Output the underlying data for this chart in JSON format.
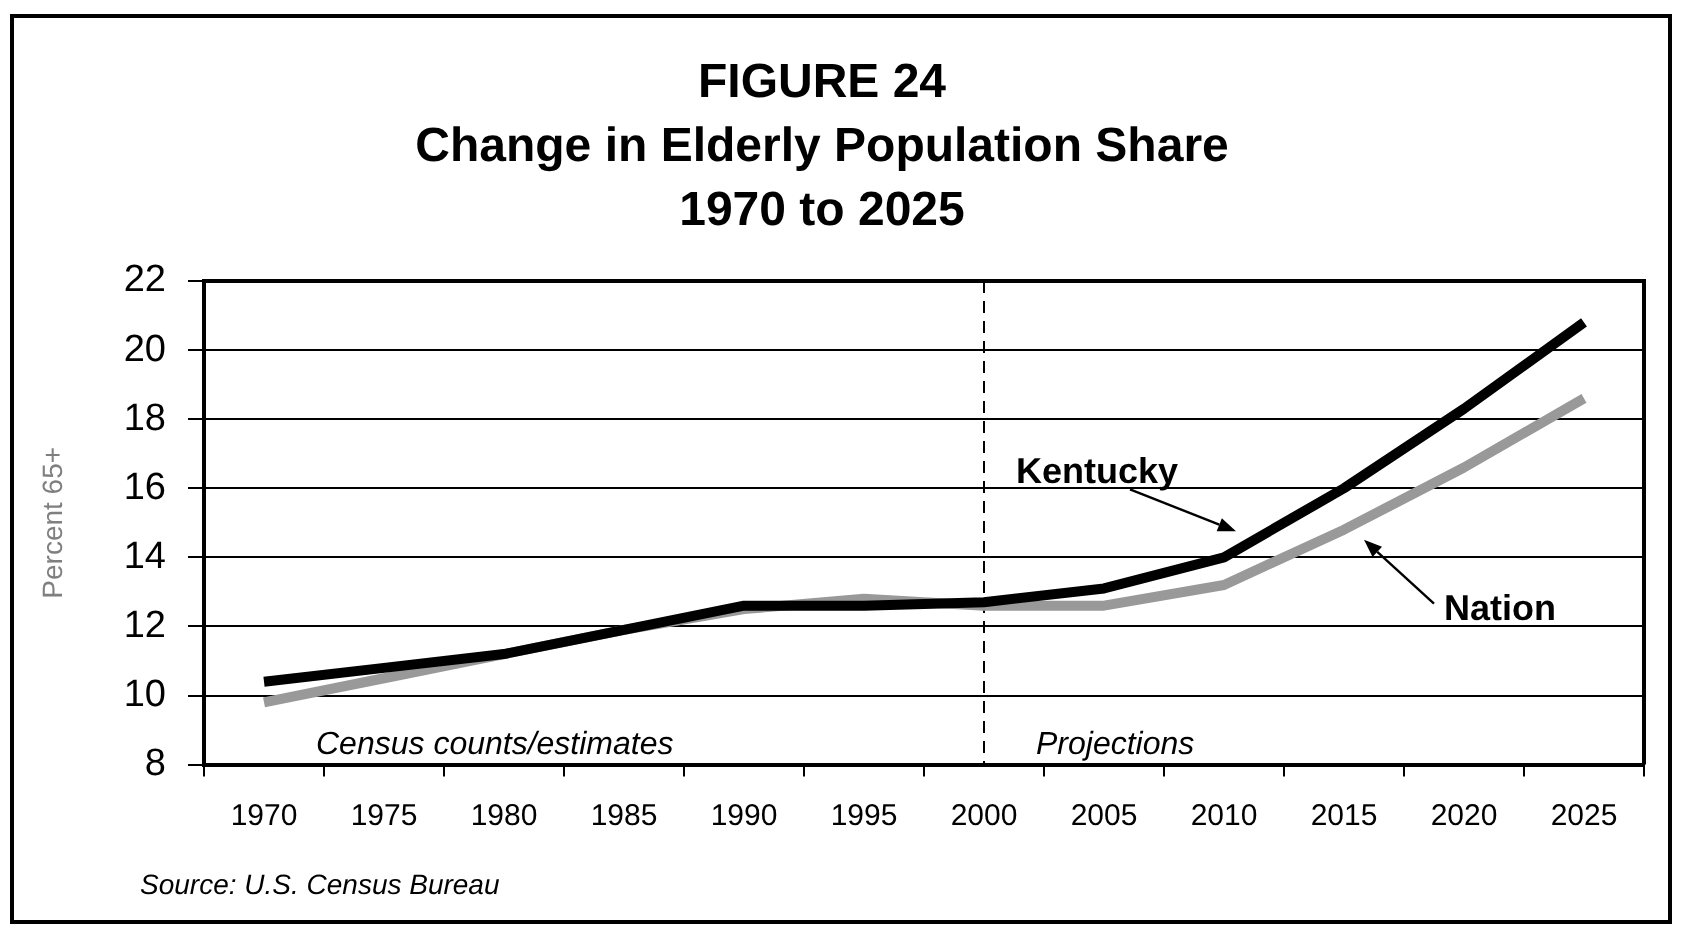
{
  "chart_data": {
    "type": "line",
    "title": "FIGURE 24\nChange in Elderly Population Share\n1970 to 2025",
    "ylabel": "Percent 65+",
    "categories": [
      "1970",
      "1975",
      "1980",
      "1985",
      "1990",
      "1995",
      "2000",
      "2005",
      "2010",
      "2015",
      "2020",
      "2025"
    ],
    "series": [
      {
        "name": "Kentucky",
        "color": "#000000",
        "values": [
          10.4,
          10.8,
          11.2,
          11.9,
          12.6,
          12.6,
          12.7,
          13.1,
          14.0,
          16.0,
          18.3,
          20.8
        ]
      },
      {
        "name": "Nation",
        "color": "#999999",
        "values": [
          9.8,
          10.5,
          11.2,
          11.9,
          12.5,
          12.8,
          12.6,
          12.6,
          13.2,
          14.8,
          16.6,
          18.6
        ]
      }
    ],
    "ylim": [
      8,
      22
    ],
    "yticks": [
      8,
      10,
      12,
      14,
      16,
      18,
      20,
      22
    ],
    "grid": "y",
    "legend": false,
    "marker": "none",
    "ref_lines": [
      {
        "axis": "x",
        "value": "2000",
        "color": "#000000",
        "line_style": "dashed"
      }
    ],
    "annotations": [
      "Census counts/estimates",
      "Projections",
      "Source: U.S. Census Bureau"
    ]
  }
}
